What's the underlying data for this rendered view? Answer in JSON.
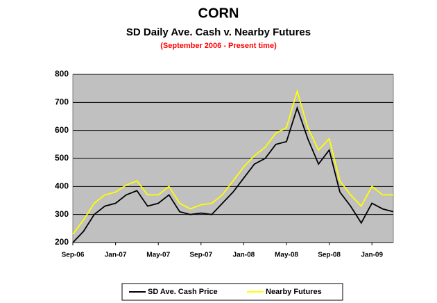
{
  "chart_data": {
    "type": "line",
    "title": "CORN",
    "subtitle": "SD Daily Ave. Cash v. Nearby Futures",
    "note": "(September 2006 - Present time)",
    "categories": [
      "Sep-06",
      null,
      null,
      null,
      "Jan-07",
      null,
      null,
      null,
      "May-07",
      null,
      null,
      null,
      "Sep-07",
      null,
      null,
      null,
      "Jan-08",
      null,
      null,
      null,
      "May-08",
      null,
      null,
      null,
      "Sep-08",
      null,
      null,
      null,
      "Jan-09",
      null,
      null
    ],
    "series": [
      {
        "name": "SD Ave. Cash Price",
        "color": "#000000",
        "values": [
          200,
          240,
          300,
          330,
          340,
          370,
          385,
          330,
          340,
          370,
          310,
          300,
          305,
          300,
          340,
          380,
          430,
          480,
          500,
          550,
          560,
          680,
          570,
          480,
          530,
          380,
          330,
          270,
          340,
          320,
          310
        ]
      },
      {
        "name": "Nearby Futures",
        "color": "#ffff00",
        "values": [
          230,
          280,
          340,
          370,
          380,
          405,
          420,
          370,
          370,
          400,
          340,
          320,
          335,
          340,
          370,
          420,
          470,
          510,
          540,
          590,
          610,
          740,
          610,
          530,
          570,
          420,
          370,
          330,
          400,
          370,
          370
        ]
      }
    ],
    "ylim": [
      200,
      800
    ],
    "yticks": [
      200,
      300,
      400,
      500,
      600,
      700,
      800
    ],
    "grid": true
  }
}
